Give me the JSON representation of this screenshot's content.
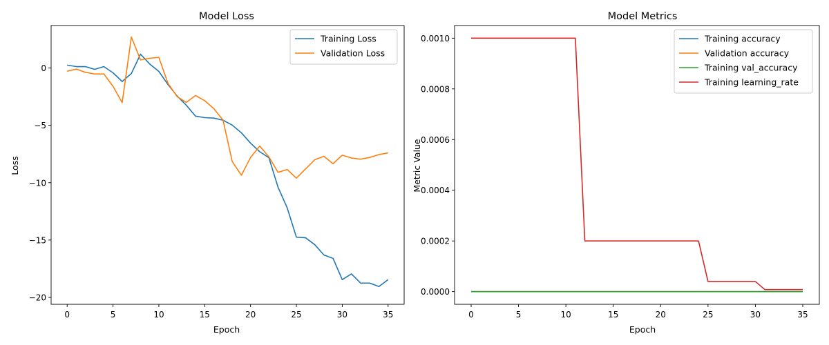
{
  "chart_data": [
    {
      "type": "line",
      "title": "Model Loss",
      "xlabel": "Epoch",
      "ylabel": "Loss",
      "xlim": [
        -1.75,
        36.75
      ],
      "ylim": [
        -20.6,
        3.7
      ],
      "xticks": [
        0,
        5,
        10,
        15,
        20,
        25,
        30,
        35
      ],
      "xtick_labels": [
        "0",
        "5",
        "10",
        "15",
        "20",
        "25",
        "30",
        "35"
      ],
      "yticks": [
        0,
        -5,
        -10,
        -15,
        -20
      ],
      "ytick_labels": [
        "0",
        "−5",
        "−10",
        "−15",
        "−20"
      ],
      "grid": false,
      "legend": "top-right",
      "x": [
        0,
        1,
        2,
        3,
        4,
        5,
        6,
        7,
        8,
        9,
        10,
        11,
        12,
        13,
        14,
        15,
        16,
        17,
        18,
        19,
        20,
        21,
        22,
        23,
        24,
        25,
        26,
        27,
        28,
        29,
        30,
        31,
        32,
        33,
        34,
        35
      ],
      "series": [
        {
          "name": "Training Loss",
          "color": "#1f77b4",
          "values": [
            0.25,
            0.12,
            0.12,
            -0.12,
            0.12,
            -0.42,
            -1.18,
            -0.48,
            1.2,
            0.35,
            -0.3,
            -1.45,
            -2.45,
            -3.25,
            -4.2,
            -4.33,
            -4.37,
            -4.55,
            -4.98,
            -5.65,
            -6.55,
            -7.3,
            -7.82,
            -10.4,
            -12.2,
            -14.75,
            -14.8,
            -15.4,
            -16.3,
            -16.6,
            -18.45,
            -17.95,
            -18.75,
            -18.75,
            -19.05,
            -18.45
          ]
        },
        {
          "name": "Validation Loss",
          "color": "#ff7f0e",
          "values": [
            -0.28,
            -0.1,
            -0.38,
            -0.52,
            -0.52,
            -1.6,
            -3.02,
            2.7,
            0.7,
            0.85,
            0.92,
            -1.35,
            -2.5,
            -3.0,
            -2.4,
            -2.85,
            -3.55,
            -4.55,
            -8.15,
            -9.35,
            -7.8,
            -6.8,
            -7.75,
            -9.1,
            -8.85,
            -9.6,
            -8.8,
            -8.0,
            -7.7,
            -8.35,
            -7.6,
            -7.85,
            -7.95,
            -7.8,
            -7.55,
            -7.4
          ]
        }
      ]
    },
    {
      "type": "line",
      "title": "Model Metrics",
      "xlabel": "Epoch",
      "ylabel": "Metric Value",
      "xlim": [
        -1.75,
        36.75
      ],
      "ylim": [
        -5e-05,
        0.00105
      ],
      "xticks": [
        0,
        5,
        10,
        15,
        20,
        25,
        30,
        35
      ],
      "xtick_labels": [
        "0",
        "5",
        "10",
        "15",
        "20",
        "25",
        "30",
        "35"
      ],
      "yticks": [
        0,
        0.0002,
        0.0004,
        0.0006,
        0.0008,
        0.001
      ],
      "ytick_labels": [
        "0.0000",
        "0.0002",
        "0.0004",
        "0.0006",
        "0.0008",
        "0.0010"
      ],
      "grid": false,
      "legend": "top-right",
      "x": [
        0,
        1,
        2,
        3,
        4,
        5,
        6,
        7,
        8,
        9,
        10,
        11,
        12,
        13,
        14,
        15,
        16,
        17,
        18,
        19,
        20,
        21,
        22,
        23,
        24,
        25,
        26,
        27,
        28,
        29,
        30,
        31,
        32,
        33,
        34,
        35
      ],
      "series": [
        {
          "name": "Training accuracy",
          "color": "#1f77b4",
          "values": [
            0,
            0,
            0,
            0,
            0,
            0,
            0,
            0,
            0,
            0,
            0,
            0,
            0,
            0,
            0,
            0,
            0,
            0,
            0,
            0,
            0,
            0,
            0,
            0,
            0,
            0,
            0,
            0,
            0,
            0,
            0,
            0,
            0,
            0,
            0,
            0
          ]
        },
        {
          "name": "Validation accuracy",
          "color": "#ff7f0e",
          "values": [
            0,
            0,
            0,
            0,
            0,
            0,
            0,
            0,
            0,
            0,
            0,
            0,
            0,
            0,
            0,
            0,
            0,
            0,
            0,
            0,
            0,
            0,
            0,
            0,
            0,
            0,
            0,
            0,
            0,
            0,
            0,
            0,
            0,
            0,
            0,
            0
          ]
        },
        {
          "name": "Training val_accuracy",
          "color": "#2ca02c",
          "values": [
            0,
            0,
            0,
            0,
            0,
            0,
            0,
            0,
            0,
            0,
            0,
            0,
            0,
            0,
            0,
            0,
            0,
            0,
            0,
            0,
            0,
            0,
            0,
            0,
            0,
            0,
            0,
            0,
            0,
            0,
            0,
            0,
            0,
            0,
            0,
            0
          ]
        },
        {
          "name": "Training learning_rate",
          "color": "#d62728",
          "values": [
            0.001,
            0.001,
            0.001,
            0.001,
            0.001,
            0.001,
            0.001,
            0.001,
            0.001,
            0.001,
            0.001,
            0.001,
            0.0002,
            0.0002,
            0.0002,
            0.0002,
            0.0002,
            0.0002,
            0.0002,
            0.0002,
            0.0002,
            0.0002,
            0.0002,
            0.0002,
            0.0002,
            4e-05,
            4e-05,
            4e-05,
            4e-05,
            4e-05,
            4e-05,
            8e-06,
            8e-06,
            8e-06,
            8e-06,
            8e-06
          ]
        }
      ]
    }
  ]
}
